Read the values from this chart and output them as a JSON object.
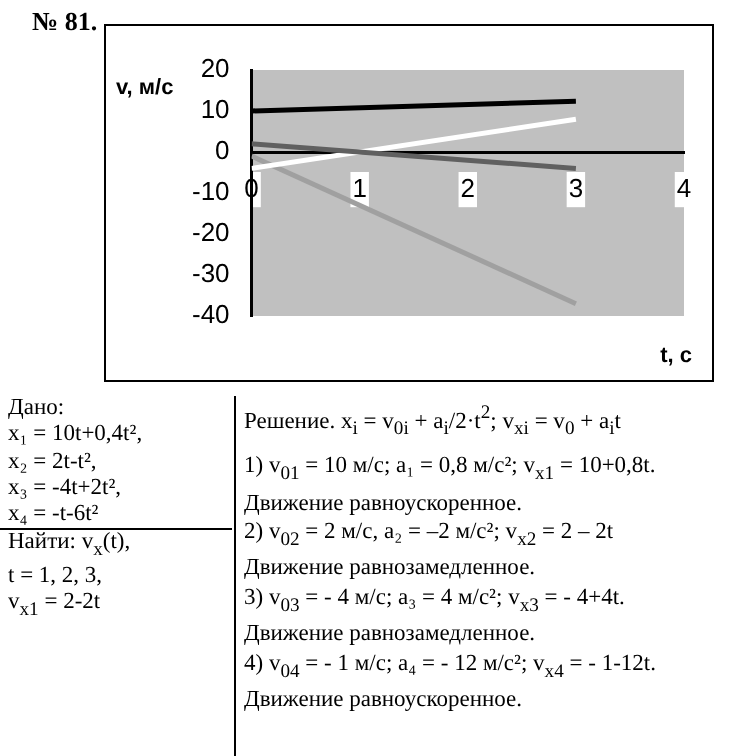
{
  "chart_data": {
    "type": "line",
    "title": "№ 81.",
    "xlabel": "t, с",
    "ylabel": "v, м/с",
    "xlim": [
      0,
      4
    ],
    "xticks": [
      0,
      1,
      2,
      3,
      4
    ],
    "ylim": [
      -40,
      20
    ],
    "yticks": [
      -40,
      -30,
      -20,
      -10,
      0,
      10,
      20
    ],
    "grid": false,
    "legend": false,
    "x": [
      0,
      3
    ],
    "series": [
      {
        "values": [
          10,
          12.4
        ],
        "color": "#000000"
      },
      {
        "values": [
          2,
          -4
        ],
        "color": "#606060"
      },
      {
        "values": [
          -4,
          8
        ],
        "color": "#ffffff"
      },
      {
        "values": [
          -1,
          -37
        ],
        "color": "#a0a0a0"
      }
    ],
    "annotations": [
      "Дано:",
      "x₁ = 10t+0,4t²,",
      "x₂ = 2t-t²,",
      "x₃ = -4t+2t²,",
      "x₄ = -t-6t²",
      "Найти: v$_{x}$(t),",
      "t = 1, 2, 3,",
      "v$_{x1}$ = 2-2t",
      "Решение. x$_{i}$ = v$_{0i}$ + a$_{i}$/2·t$^{2}$; v$_{xi}$ = v$_{0}$ + a$_{i}$t",
      "1) v$_{01}$ = 10 м/с; a₁ = 0,8 м/с²; v$_{x1}$ = 10+0,8t.",
      "Движение равноускоренное.",
      "2) v$_{02}$ = 2 м/с, a₂ = –2 м/с²; v$_{x2}$ = 2 – 2t",
      "Движение равнозамедленное.",
      "3) v$_{03}$ = - 4 м/с; a₃ = 4 м/с²; v$_{x3}$ = - 4+4t.",
      "Движение равнозамедленное.",
      "4) v$_{04}$ = - 1 м/с; a₄ = - 12 м/с²; v$_{x4}$ = - 1-12t.",
      "Движение равноускоренное."
    ]
  }
}
